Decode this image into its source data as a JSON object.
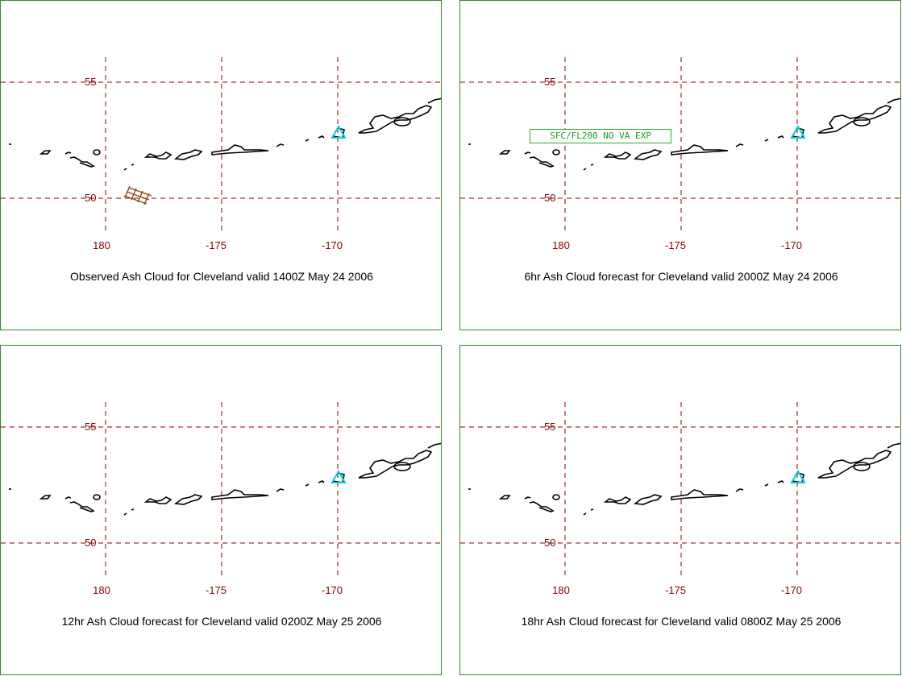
{
  "volcano": "Cleveland",
  "panels": [
    {
      "caption": "Observed Ash Cloud for Cleveland valid 1400Z May 24 2006",
      "latitude_labels": [
        "55",
        "50"
      ],
      "longitude_labels": [
        "180",
        "-175",
        "-170"
      ],
      "advisory": "",
      "colors": {
        "grid": "#8b0000",
        "coast": "#000000",
        "volcano_marker": "#00d0e0",
        "ash_cloud": "#8b4513"
      }
    },
    {
      "caption": "6hr Ash Cloud forecast for Cleveland valid 2000Z May 24 2006",
      "latitude_labels": [
        "55",
        "50"
      ],
      "longitude_labels": [
        "180",
        "-175",
        "-170"
      ],
      "advisory": "SFC/FL200 NO VA EXP",
      "colors": {
        "grid": "#8b0000",
        "coast": "#000000",
        "volcano_marker": "#00d0e0",
        "advisory": "#1aa01a"
      }
    },
    {
      "caption": "12hr Ash Cloud forecast for Cleveland valid 0200Z May 25 2006",
      "latitude_labels": [
        "55",
        "50"
      ],
      "longitude_labels": [
        "180",
        "-175",
        "-170"
      ],
      "advisory": "",
      "colors": {
        "grid": "#8b0000",
        "coast": "#000000",
        "volcano_marker": "#00d0e0"
      }
    },
    {
      "caption": "18hr Ash Cloud forecast for Cleveland valid 0800Z May 25 2006",
      "latitude_labels": [
        "55",
        "50"
      ],
      "longitude_labels": [
        "180",
        "-175",
        "-170"
      ],
      "advisory": "",
      "colors": {
        "grid": "#8b0000",
        "coast": "#000000",
        "volcano_marker": "#00d0e0"
      }
    }
  ]
}
